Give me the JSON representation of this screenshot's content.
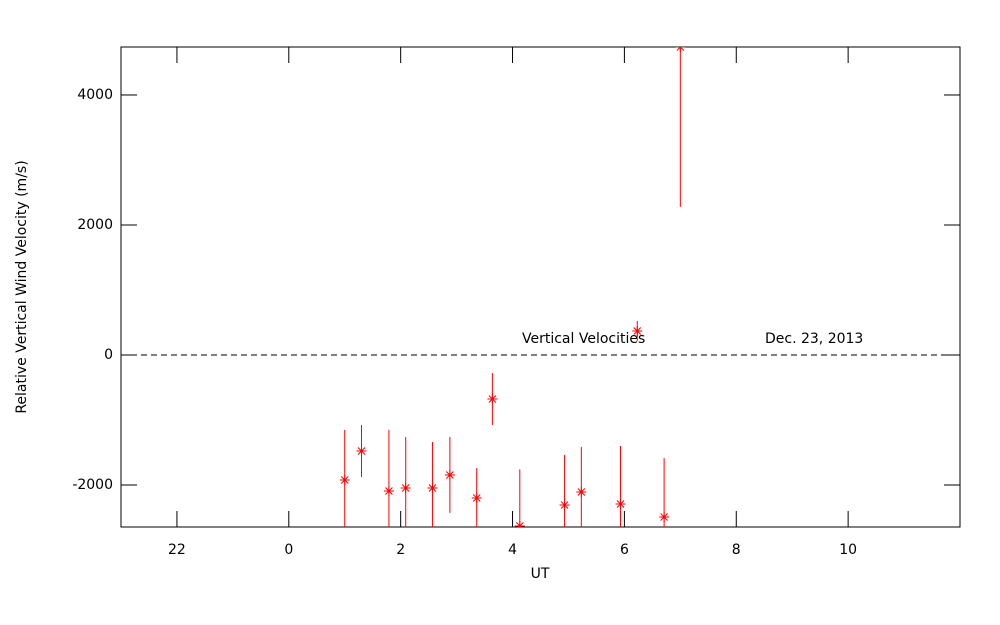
{
  "chart_data": {
    "type": "scatter",
    "xlabel": "UT",
    "ylabel": "Relative Vertical Wind Velocity (m/s)",
    "annotations": [
      "Vertical Velocities",
      "Dec. 23, 2013"
    ],
    "xlim": [
      21,
      36
    ],
    "xticks": [
      {
        "value": 22,
        "label": "22"
      },
      {
        "value": 24,
        "label": "0"
      },
      {
        "value": 26,
        "label": "2"
      },
      {
        "value": 28,
        "label": "4"
      },
      {
        "value": 30,
        "label": "6"
      },
      {
        "value": 32,
        "label": "8"
      },
      {
        "value": 34,
        "label": "10"
      }
    ],
    "ylim": [
      -2646,
      4738
    ],
    "yticks": [
      -2000,
      0,
      2000,
      4000
    ],
    "hline": 0,
    "series": [
      {
        "color": "#ff0000",
        "x": [
          25.0,
          25.3,
          25.79,
          26.09,
          26.57,
          26.88,
          27.36,
          27.64,
          28.13,
          28.93,
          29.23,
          29.93,
          30.23,
          30.71,
          31.0
        ],
        "values": [
          -1923,
          -1477,
          -2092,
          -2046,
          -2046,
          -1846,
          -2200,
          -677,
          -2630,
          -2308,
          -2108,
          -2292,
          369,
          -2492,
          4738
        ],
        "errors": [
          770,
          400,
          940,
          785,
          708,
          585,
          462,
          400,
          870,
          770,
          693,
          892,
          154,
          907,
          2460
        ]
      }
    ]
  }
}
